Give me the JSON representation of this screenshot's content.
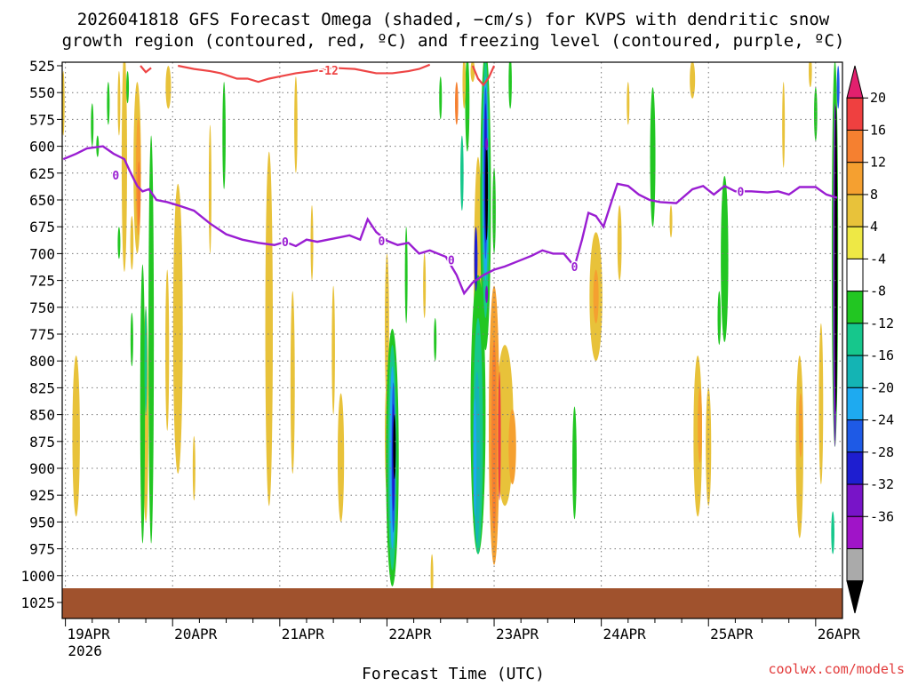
{
  "chart_data": {
    "type": "heatmap",
    "title_line1": "2026041818 GFS Forecast Omega (shaded, −cm/s) for KVPS with dendritic snow",
    "title_line2": "growth region (contoured, red, ºC) and freezing level (contoured, purple, ºC)",
    "xlabel": "Forecast Time (UTC)",
    "credit": "coolwx.com/models",
    "x_ticks": [
      {
        "label": "19APR",
        "sub": "2026",
        "day": 0
      },
      {
        "label": "20APR",
        "sub": "",
        "day": 1
      },
      {
        "label": "21APR",
        "sub": "",
        "day": 2
      },
      {
        "label": "22APR",
        "sub": "",
        "day": 3
      },
      {
        "label": "23APR",
        "sub": "",
        "day": 4
      },
      {
        "label": "24APR",
        "sub": "",
        "day": 5
      },
      {
        "label": "25APR",
        "sub": "",
        "day": 6
      },
      {
        "label": "26APR",
        "sub": "",
        "day": 7
      }
    ],
    "xlim": [
      -0.03,
      7.25
    ],
    "y_ticks": [
      "525",
      "550",
      "575",
      "600",
      "625",
      "650",
      "675",
      "700",
      "725",
      "750",
      "775",
      "800",
      "825",
      "850",
      "875",
      "900",
      "925",
      "950",
      "975",
      "1000",
      "1025"
    ],
    "ylim": [
      525,
      1025
    ],
    "colorbar": {
      "labels": [
        "20",
        "16",
        "12",
        "8",
        "4",
        "-4",
        "-8",
        "-12",
        "-16",
        "-20",
        "-24",
        "-28",
        "-32",
        "-36"
      ],
      "colors": [
        "#e2206e",
        "#ef4040",
        "#f58030",
        "#f5a030",
        "#e8c23a",
        "#eee845",
        "#ffffff",
        "#22c622",
        "#16c78c",
        "#14b4b4",
        "#1eaaf0",
        "#1e5ae6",
        "#1e1ed0",
        "#7814c8",
        "#a014c8",
        "#aaaaaa",
        "#000000"
      ]
    },
    "freezing_level": {
      "name": "0",
      "color": "#9a1ed2",
      "points": [
        [
          -0.02,
          612
        ],
        [
          0.1,
          607
        ],
        [
          0.2,
          602
        ],
        [
          0.35,
          600
        ],
        [
          0.45,
          607
        ],
        [
          0.55,
          612
        ],
        [
          0.6,
          623
        ],
        [
          0.67,
          637
        ],
        [
          0.72,
          642
        ],
        [
          0.78,
          640
        ],
        [
          0.85,
          650
        ],
        [
          0.95,
          652
        ],
        [
          1.05,
          655
        ],
        [
          1.2,
          660
        ],
        [
          1.35,
          672
        ],
        [
          1.5,
          682
        ],
        [
          1.65,
          687
        ],
        [
          1.8,
          690
        ],
        [
          1.95,
          692
        ],
        [
          2.05,
          689
        ],
        [
          2.15,
          693
        ],
        [
          2.25,
          687
        ],
        [
          2.35,
          689
        ],
        [
          2.45,
          687
        ],
        [
          2.55,
          685
        ],
        [
          2.65,
          683
        ],
        [
          2.75,
          687
        ],
        [
          2.82,
          668
        ],
        [
          2.9,
          680
        ],
        [
          3.0,
          688
        ],
        [
          3.1,
          692
        ],
        [
          3.2,
          690
        ],
        [
          3.3,
          700
        ],
        [
          3.4,
          697
        ],
        [
          3.55,
          703
        ],
        [
          3.65,
          720
        ],
        [
          3.72,
          737
        ],
        [
          3.8,
          727
        ],
        [
          3.9,
          720
        ],
        [
          4.0,
          715
        ],
        [
          4.1,
          712
        ],
        [
          4.2,
          708
        ],
        [
          4.35,
          702
        ],
        [
          4.45,
          697
        ],
        [
          4.55,
          700
        ],
        [
          4.65,
          700
        ],
        [
          4.75,
          712
        ],
        [
          4.82,
          687
        ],
        [
          4.88,
          662
        ],
        [
          4.95,
          665
        ],
        [
          5.02,
          675
        ],
        [
          5.1,
          650
        ],
        [
          5.15,
          635
        ],
        [
          5.25,
          637
        ],
        [
          5.35,
          645
        ],
        [
          5.45,
          650
        ],
        [
          5.55,
          652
        ],
        [
          5.7,
          653
        ],
        [
          5.85,
          640
        ],
        [
          5.95,
          637
        ],
        [
          6.05,
          645
        ],
        [
          6.15,
          637
        ],
        [
          6.25,
          642
        ],
        [
          6.4,
          642
        ],
        [
          6.55,
          643
        ],
        [
          6.65,
          642
        ],
        [
          6.75,
          645
        ],
        [
          6.85,
          638
        ],
        [
          7.0,
          638
        ],
        [
          7.1,
          645
        ],
        [
          7.2,
          648
        ]
      ],
      "labels": [
        [
          0.47,
          627
        ],
        [
          2.05,
          689
        ],
        [
          2.95,
          688
        ],
        [
          3.6,
          706
        ],
        [
          4.75,
          712
        ],
        [
          6.3,
          642
        ]
      ]
    },
    "dgz_contour": {
      "name": "-12",
      "color": "#ee4545",
      "segments": [
        [
          [
            1.05,
            525
          ],
          [
            1.2,
            528
          ],
          [
            1.35,
            530
          ],
          [
            1.45,
            532
          ],
          [
            1.6,
            537
          ],
          [
            1.7,
            537
          ],
          [
            1.8,
            540
          ],
          [
            1.9,
            537
          ],
          [
            2.0,
            535
          ],
          [
            2.15,
            532
          ],
          [
            2.3,
            530
          ],
          [
            2.5,
            527
          ],
          [
            2.7,
            528
          ],
          [
            2.9,
            532
          ],
          [
            3.05,
            532
          ],
          [
            3.2,
            530
          ],
          [
            3.3,
            528
          ],
          [
            3.4,
            524
          ]
        ],
        [
          [
            0.7,
            525
          ],
          [
            0.75,
            531
          ],
          [
            0.8,
            527
          ]
        ],
        [
          [
            3.8,
            525
          ],
          [
            3.85,
            537
          ],
          [
            3.9,
            543
          ],
          [
            3.95,
            536
          ],
          [
            4.0,
            525
          ]
        ]
      ],
      "labels": [
        [
          2.45,
          529
        ]
      ]
    },
    "omega_cells": [
      {
        "x": 0.55,
        "p": 614,
        "w": 0.05,
        "h": 206,
        "v": 6
      },
      {
        "x": 0.67,
        "p": 620,
        "w": 0.07,
        "h": 160,
        "v": 7
      },
      {
        "x": 0.68,
        "p": 628,
        "w": 0.045,
        "h": 110,
        "v": 10
      },
      {
        "x": 0.685,
        "p": 644,
        "w": 0.03,
        "h": 60,
        "v": 14
      },
      {
        "x": 0.62,
        "p": 690,
        "w": 0.03,
        "h": 50,
        "v": 6
      },
      {
        "x": 1.05,
        "p": 770,
        "w": 0.09,
        "h": 270,
        "v": 6
      },
      {
        "x": 1.35,
        "p": 640,
        "w": 0.025,
        "h": 120,
        "v": 6
      },
      {
        "x": 1.9,
        "p": 770,
        "w": 0.07,
        "h": 330,
        "v": 6
      },
      {
        "x": 2.12,
        "p": 820,
        "w": 0.04,
        "h": 170,
        "v": 6
      },
      {
        "x": 2.5,
        "p": 790,
        "w": 0.03,
        "h": 120,
        "v": 6
      },
      {
        "x": 2.57,
        "p": 890,
        "w": 0.06,
        "h": 120,
        "v": 6
      },
      {
        "x": 2.15,
        "p": 580,
        "w": 0.03,
        "h": 90,
        "v": 6
      },
      {
        "x": 3.0,
        "p": 770,
        "w": 0.04,
        "h": 140,
        "v": 6
      },
      {
        "x": 3.02,
        "p": 870,
        "w": 0.08,
        "h": 140,
        "v": 6
      },
      {
        "x": 3.35,
        "p": 730,
        "w": 0.025,
        "h": 60,
        "v": 6
      },
      {
        "x": 3.85,
        "p": 740,
        "w": 0.08,
        "h": 260,
        "v": 6
      },
      {
        "x": 4.1,
        "p": 860,
        "w": 0.16,
        "h": 150,
        "v": 6
      },
      {
        "x": 4.17,
        "p": 880,
        "w": 0.07,
        "h": 70,
        "v": 10
      },
      {
        "x": 4.95,
        "p": 740,
        "w": 0.12,
        "h": 120,
        "v": 6
      },
      {
        "x": 4.95,
        "p": 740,
        "w": 0.05,
        "h": 50,
        "v": 10
      },
      {
        "x": 5.17,
        "p": 690,
        "w": 0.04,
        "h": 70,
        "v": 6
      },
      {
        "x": 5.25,
        "p": 560,
        "w": 0.025,
        "h": 40,
        "v": 6
      },
      {
        "x": 5.65,
        "p": 670,
        "w": 0.025,
        "h": 30,
        "v": 6
      },
      {
        "x": 5.9,
        "p": 870,
        "w": 0.08,
        "h": 150,
        "v": 6
      },
      {
        "x": 5.92,
        "p": 860,
        "w": 0.04,
        "h": 70,
        "v": 10
      },
      {
        "x": 6.0,
        "p": 880,
        "w": 0.05,
        "h": 110,
        "v": 6
      },
      {
        "x": 6.85,
        "p": 880,
        "w": 0.07,
        "h": 170,
        "v": 6
      },
      {
        "x": 6.86,
        "p": 860,
        "w": 0.035,
        "h": 60,
        "v": 10
      },
      {
        "x": 6.7,
        "p": 580,
        "w": 0.025,
        "h": 80,
        "v": 6
      },
      {
        "x": 7.05,
        "p": 840,
        "w": 0.04,
        "h": 150,
        "v": 6
      },
      {
        "x": 5.85,
        "p": 538,
        "w": 0.05,
        "h": 35,
        "v": 6
      },
      {
        "x": 0.1,
        "p": 870,
        "w": 0.07,
        "h": 150,
        "v": 6
      },
      {
        "x": 0.75,
        "p": 850,
        "w": 0.05,
        "h": 200,
        "v": 6
      },
      {
        "x": 0.95,
        "p": 790,
        "w": 0.035,
        "h": 150,
        "v": 6
      },
      {
        "x": 0.5,
        "p": 560,
        "w": 0.025,
        "h": 60,
        "v": 6
      },
      {
        "x": -0.02,
        "p": 560,
        "w": 0.02,
        "h": 60,
        "v": 6
      },
      {
        "x": 0.96,
        "p": 545,
        "w": 0.05,
        "h": 40,
        "v": 6
      },
      {
        "x": 2.3,
        "p": 690,
        "w": 0.02,
        "h": 70,
        "v": 6
      },
      {
        "x": 1.2,
        "p": 900,
        "w": 0.02,
        "h": 60,
        "v": 6
      },
      {
        "x": 3.42,
        "p": 1000,
        "w": 0.02,
        "h": 40,
        "v": 6
      },
      {
        "x": 6.95,
        "p": 530,
        "w": 0.03,
        "h": 30,
        "v": 6
      },
      {
        "x": 0.8,
        "p": 780,
        "w": 0.05,
        "h": 380,
        "v": -6
      },
      {
        "x": 0.72,
        "p": 840,
        "w": 0.045,
        "h": 260,
        "v": -6
      },
      {
        "x": 0.75,
        "p": 800,
        "w": 0.025,
        "h": 100,
        "v": -10
      },
      {
        "x": 0.62,
        "p": 780,
        "w": 0.025,
        "h": 50,
        "v": -6
      },
      {
        "x": 0.5,
        "p": 690,
        "w": 0.02,
        "h": 30,
        "v": -6
      },
      {
        "x": 0.4,
        "p": 560,
        "w": 0.015,
        "h": 40,
        "v": -6
      },
      {
        "x": 1.48,
        "p": 590,
        "w": 0.03,
        "h": 100,
        "v": -6
      },
      {
        "x": 0.25,
        "p": 580,
        "w": 0.015,
        "h": 40,
        "v": -6
      },
      {
        "x": 0.58,
        "p": 545,
        "w": 0.015,
        "h": 30,
        "v": -6
      },
      {
        "x": 0.3,
        "p": 600,
        "w": 0.015,
        "h": 20,
        "v": -6
      },
      {
        "x": 3.05,
        "p": 890,
        "w": 0.12,
        "h": 240,
        "v": -6
      },
      {
        "x": 3.05,
        "p": 890,
        "w": 0.08,
        "h": 210,
        "v": -10
      },
      {
        "x": 3.05,
        "p": 890,
        "w": 0.05,
        "h": 170,
        "v": -18
      },
      {
        "x": 3.06,
        "p": 890,
        "w": 0.035,
        "h": 140,
        "v": -22
      },
      {
        "x": 3.06,
        "p": 890,
        "w": 0.02,
        "h": 100,
        "v": -26
      },
      {
        "x": 3.07,
        "p": 880,
        "w": 0.01,
        "h": 60,
        "v": -34
      },
      {
        "x": 3.18,
        "p": 720,
        "w": 0.025,
        "h": 90,
        "v": -6
      },
      {
        "x": 3.75,
        "p": 560,
        "w": 0.04,
        "h": 90,
        "v": -6
      },
      {
        "x": 3.7,
        "p": 625,
        "w": 0.03,
        "h": 70,
        "v": -10
      },
      {
        "x": 3.85,
        "p": 850,
        "w": 0.14,
        "h": 260,
        "v": -6
      },
      {
        "x": 3.85,
        "p": 870,
        "w": 0.09,
        "h": 220,
        "v": -10
      },
      {
        "x": 3.84,
        "p": 890,
        "w": 0.06,
        "h": 160,
        "v": -14
      },
      {
        "x": 3.82,
        "p": 890,
        "w": 0.03,
        "h": 110,
        "v": -18
      },
      {
        "x": 3.92,
        "p": 650,
        "w": 0.1,
        "h": 280,
        "v": -6
      },
      {
        "x": 3.92,
        "p": 640,
        "w": 0.07,
        "h": 240,
        "v": -10
      },
      {
        "x": 3.92,
        "p": 630,
        "w": 0.05,
        "h": 190,
        "v": -16
      },
      {
        "x": 3.92,
        "p": 625,
        "w": 0.035,
        "h": 160,
        "v": -22
      },
      {
        "x": 3.92,
        "p": 625,
        "w": 0.025,
        "h": 130,
        "v": -26
      },
      {
        "x": 3.93,
        "p": 640,
        "w": 0.018,
        "h": 95,
        "v": -34
      },
      {
        "x": 3.93,
        "p": 598,
        "w": 0.01,
        "h": 12,
        "v": -30
      },
      {
        "x": 3.93,
        "p": 738,
        "w": 0.01,
        "h": 16,
        "v": -30
      },
      {
        "x": 3.83,
        "p": 705,
        "w": 0.03,
        "h": 60,
        "v": -26
      },
      {
        "x": 4.0,
        "p": 660,
        "w": 0.03,
        "h": 80,
        "v": -6
      },
      {
        "x": 4.02,
        "p": 940,
        "w": 0.03,
        "h": 40,
        "v": -6
      },
      {
        "x": 4.15,
        "p": 540,
        "w": 0.03,
        "h": 50,
        "v": -6
      },
      {
        "x": 5.48,
        "p": 610,
        "w": 0.05,
        "h": 130,
        "v": -6
      },
      {
        "x": 6.15,
        "p": 705,
        "w": 0.07,
        "h": 155,
        "v": -6
      },
      {
        "x": 6.1,
        "p": 760,
        "w": 0.03,
        "h": 50,
        "v": -6
      },
      {
        "x": 4.75,
        "p": 895,
        "w": 0.04,
        "h": 105,
        "v": -6
      },
      {
        "x": 7.0,
        "p": 570,
        "w": 0.03,
        "h": 50,
        "v": -6
      },
      {
        "x": 7.18,
        "p": 700,
        "w": 0.06,
        "h": 360,
        "v": -6
      },
      {
        "x": 7.18,
        "p": 720,
        "w": 0.035,
        "h": 320,
        "v": -30
      },
      {
        "x": 7.19,
        "p": 705,
        "w": 0.02,
        "h": 285,
        "v": -34
      },
      {
        "x": 7.21,
        "p": 545,
        "w": 0.025,
        "h": 40,
        "v": -22
      },
      {
        "x": 7.16,
        "p": 960,
        "w": 0.03,
        "h": 40,
        "v": -10
      },
      {
        "x": 3.45,
        "p": 780,
        "w": 0.02,
        "h": 40,
        "v": -6
      },
      {
        "x": 3.5,
        "p": 555,
        "w": 0.02,
        "h": 40,
        "v": -6
      },
      {
        "x": 4.0,
        "p": 860,
        "w": 0.1,
        "h": 260,
        "v": 10
      },
      {
        "x": 4.0,
        "p": 870,
        "w": 0.05,
        "h": 180,
        "v": 14
      },
      {
        "x": 4.05,
        "p": 870,
        "w": 0.02,
        "h": 120,
        "v": 18
      },
      {
        "x": 3.65,
        "p": 560,
        "w": 0.03,
        "h": 40,
        "v": 14
      },
      {
        "x": 3.72,
        "p": 540,
        "w": 0.03,
        "h": 50,
        "v": 6
      },
      {
        "x": 3.8,
        "p": 530,
        "w": 0.04,
        "h": 20,
        "v": 6
      }
    ],
    "surface": {
      "color": "#a0522d"
    }
  }
}
